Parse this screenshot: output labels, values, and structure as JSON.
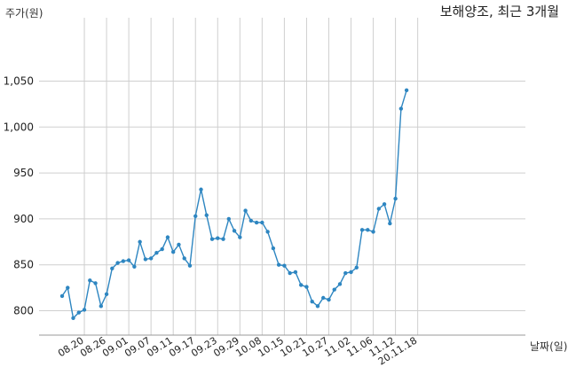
{
  "chart_data": {
    "type": "line",
    "title": "보해양조, 최근 3개월",
    "ylabel": "주가(원)",
    "xlabel": "날짜(일)",
    "ylim": [
      780,
      1050
    ],
    "yticks": [
      800,
      850,
      900,
      950,
      1000,
      1050
    ],
    "ytick_labels": [
      "800",
      "850",
      "900",
      "950",
      "1,000",
      "1,050"
    ],
    "xtick_labels": [
      "08.20",
      "08.26",
      "09.01",
      "09.07",
      "09.11",
      "09.17",
      "09.23",
      "09.29",
      "10.08",
      "10.15",
      "10.21",
      "10.27",
      "11.02",
      "11.06",
      "11.12",
      "20.11.18"
    ],
    "xtick_index": [
      4,
      8,
      12,
      16,
      20,
      24,
      28,
      32,
      36,
      40,
      44,
      48,
      52,
      56,
      60,
      64
    ],
    "grid": true,
    "line_color": "#2e86c1",
    "series": [
      {
        "values": [
          816,
          825,
          792,
          798,
          801,
          833,
          830,
          805,
          818,
          846,
          852,
          854,
          855,
          848,
          875,
          856,
          857,
          863,
          867,
          880,
          864,
          872,
          857,
          849,
          903,
          932,
          904,
          878,
          879,
          878,
          900,
          887,
          880,
          909,
          898,
          896,
          896,
          886,
          868,
          850,
          849,
          841,
          842,
          828,
          826,
          810,
          805,
          814,
          812,
          823,
          829,
          841,
          842,
          847,
          888,
          888,
          886,
          911,
          916,
          895,
          922,
          1020,
          1040
        ]
      }
    ]
  }
}
